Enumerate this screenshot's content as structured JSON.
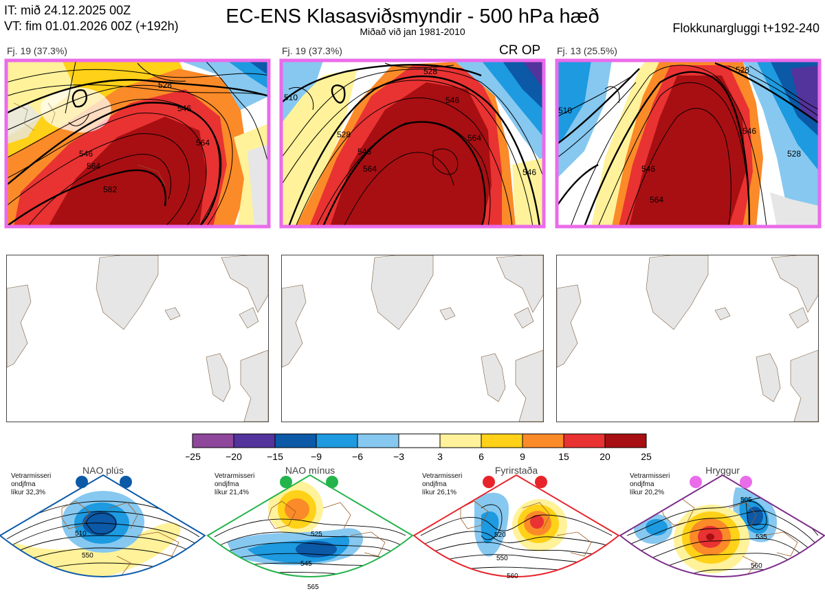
{
  "header": {
    "it_line": "IT: mið 24.12.2025 00Z",
    "vt_line": "VT: fim 01.01.2026 00Z  (+192h)",
    "title": "EC-ENS Klasasviðsmyndir - 500 hPa hæð",
    "subtitle": "Miðað við jan 1981-2010",
    "right": "Flokkunargluggi t+192-240"
  },
  "panels": [
    {
      "label": "Fj. 19 (37.3%)",
      "contours": [
        "528",
        "546",
        "564",
        "546",
        "564",
        "582"
      ]
    },
    {
      "label": "Fj. 19 (37.3%)",
      "badge": "CR OP",
      "contours": [
        "528",
        "546",
        "564",
        "528",
        "564",
        "546",
        "510",
        "546"
      ]
    },
    {
      "label": "Fj. 13 (25.5%)",
      "contours": [
        "528",
        "546",
        "564",
        "546",
        "528",
        "510"
      ]
    }
  ],
  "colorbar": {
    "ticks": [
      "−25",
      "−20",
      "−15",
      "−9",
      "−6",
      "−3",
      "3",
      "6",
      "9",
      "15",
      "20",
      "25"
    ],
    "colors": [
      "#8e479a",
      "#53339c",
      "#0b59a7",
      "#1d9ae0",
      "#86c8f0",
      "#ffffff",
      "#fff29a",
      "#ffd118",
      "#fb8a28",
      "#e93232",
      "#a80f12"
    ]
  },
  "regimes": [
    {
      "name": "NAO plús",
      "info": [
        "Vetrarmisseri",
        "ondjfma",
        "líkur 32,3%"
      ],
      "dot_color": "#0b59a7",
      "frame_color": "#0b59a7",
      "contours": [
        "510",
        "550"
      ]
    },
    {
      "name": "NAO mínus",
      "info": [
        "Vetrarmisseri",
        "ondjfma",
        "líkur 21,4%"
      ],
      "dot_color": "#23b44b",
      "frame_color": "#23b44b",
      "contours": [
        "525",
        "545",
        "565"
      ]
    },
    {
      "name": "Fyrirstaða",
      "info": [
        "Vetrarmisseri",
        "ondjfma",
        "líkur 26,1%"
      ],
      "dot_color": "#e8242b",
      "frame_color": "#e8242b",
      "contours": [
        "520",
        "550",
        "560"
      ]
    },
    {
      "name": "Hryggur",
      "info": [
        "Vetrarmisseri",
        "ondjfma",
        "líkur 20,2%"
      ],
      "dot_color": "#ea6cea",
      "frame_color": "#7d2e8a",
      "contours": [
        "505",
        "535",
        "560"
      ]
    }
  ]
}
